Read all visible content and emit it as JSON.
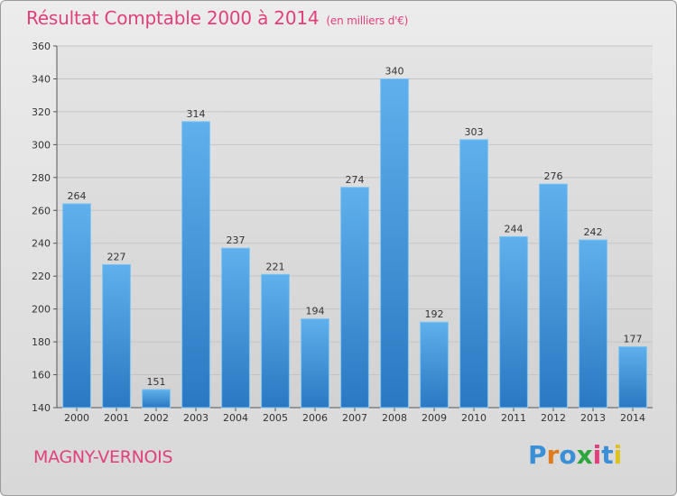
{
  "header": {
    "title": "Résultat Comptable 2000 à 2014",
    "subtitle": "(en milliers d'€)"
  },
  "footer": {
    "commune": "MAGNY-VERNOIS",
    "logo": "Proxiti",
    "logo_colors": [
      "#3a8fd6",
      "#e07b1f",
      "#3a8fd6",
      "#2ea640",
      "#e0407c",
      "#3a8fd6",
      "#e0c21f"
    ]
  },
  "colors": {
    "title": "#e0407c",
    "bar_light": "#5fb0ec",
    "bar_dark": "#2a78c2",
    "grid": "#c4c4c4"
  },
  "chart_data": {
    "type": "bar",
    "title": "Résultat Comptable 2000 à 2014",
    "ylabel": "en milliers d'€",
    "xlabel": "",
    "categories": [
      "2000",
      "2001",
      "2002",
      "2003",
      "2004",
      "2005",
      "2006",
      "2007",
      "2008",
      "2009",
      "2010",
      "2011",
      "2012",
      "2013",
      "2014"
    ],
    "values": [
      264,
      227,
      151,
      314,
      237,
      221,
      194,
      274,
      340,
      192,
      303,
      244,
      276,
      242,
      177
    ],
    "ylim": [
      140,
      360
    ],
    "yticks": [
      140,
      160,
      180,
      200,
      220,
      240,
      260,
      280,
      300,
      320,
      340,
      360
    ],
    "grid": true
  }
}
